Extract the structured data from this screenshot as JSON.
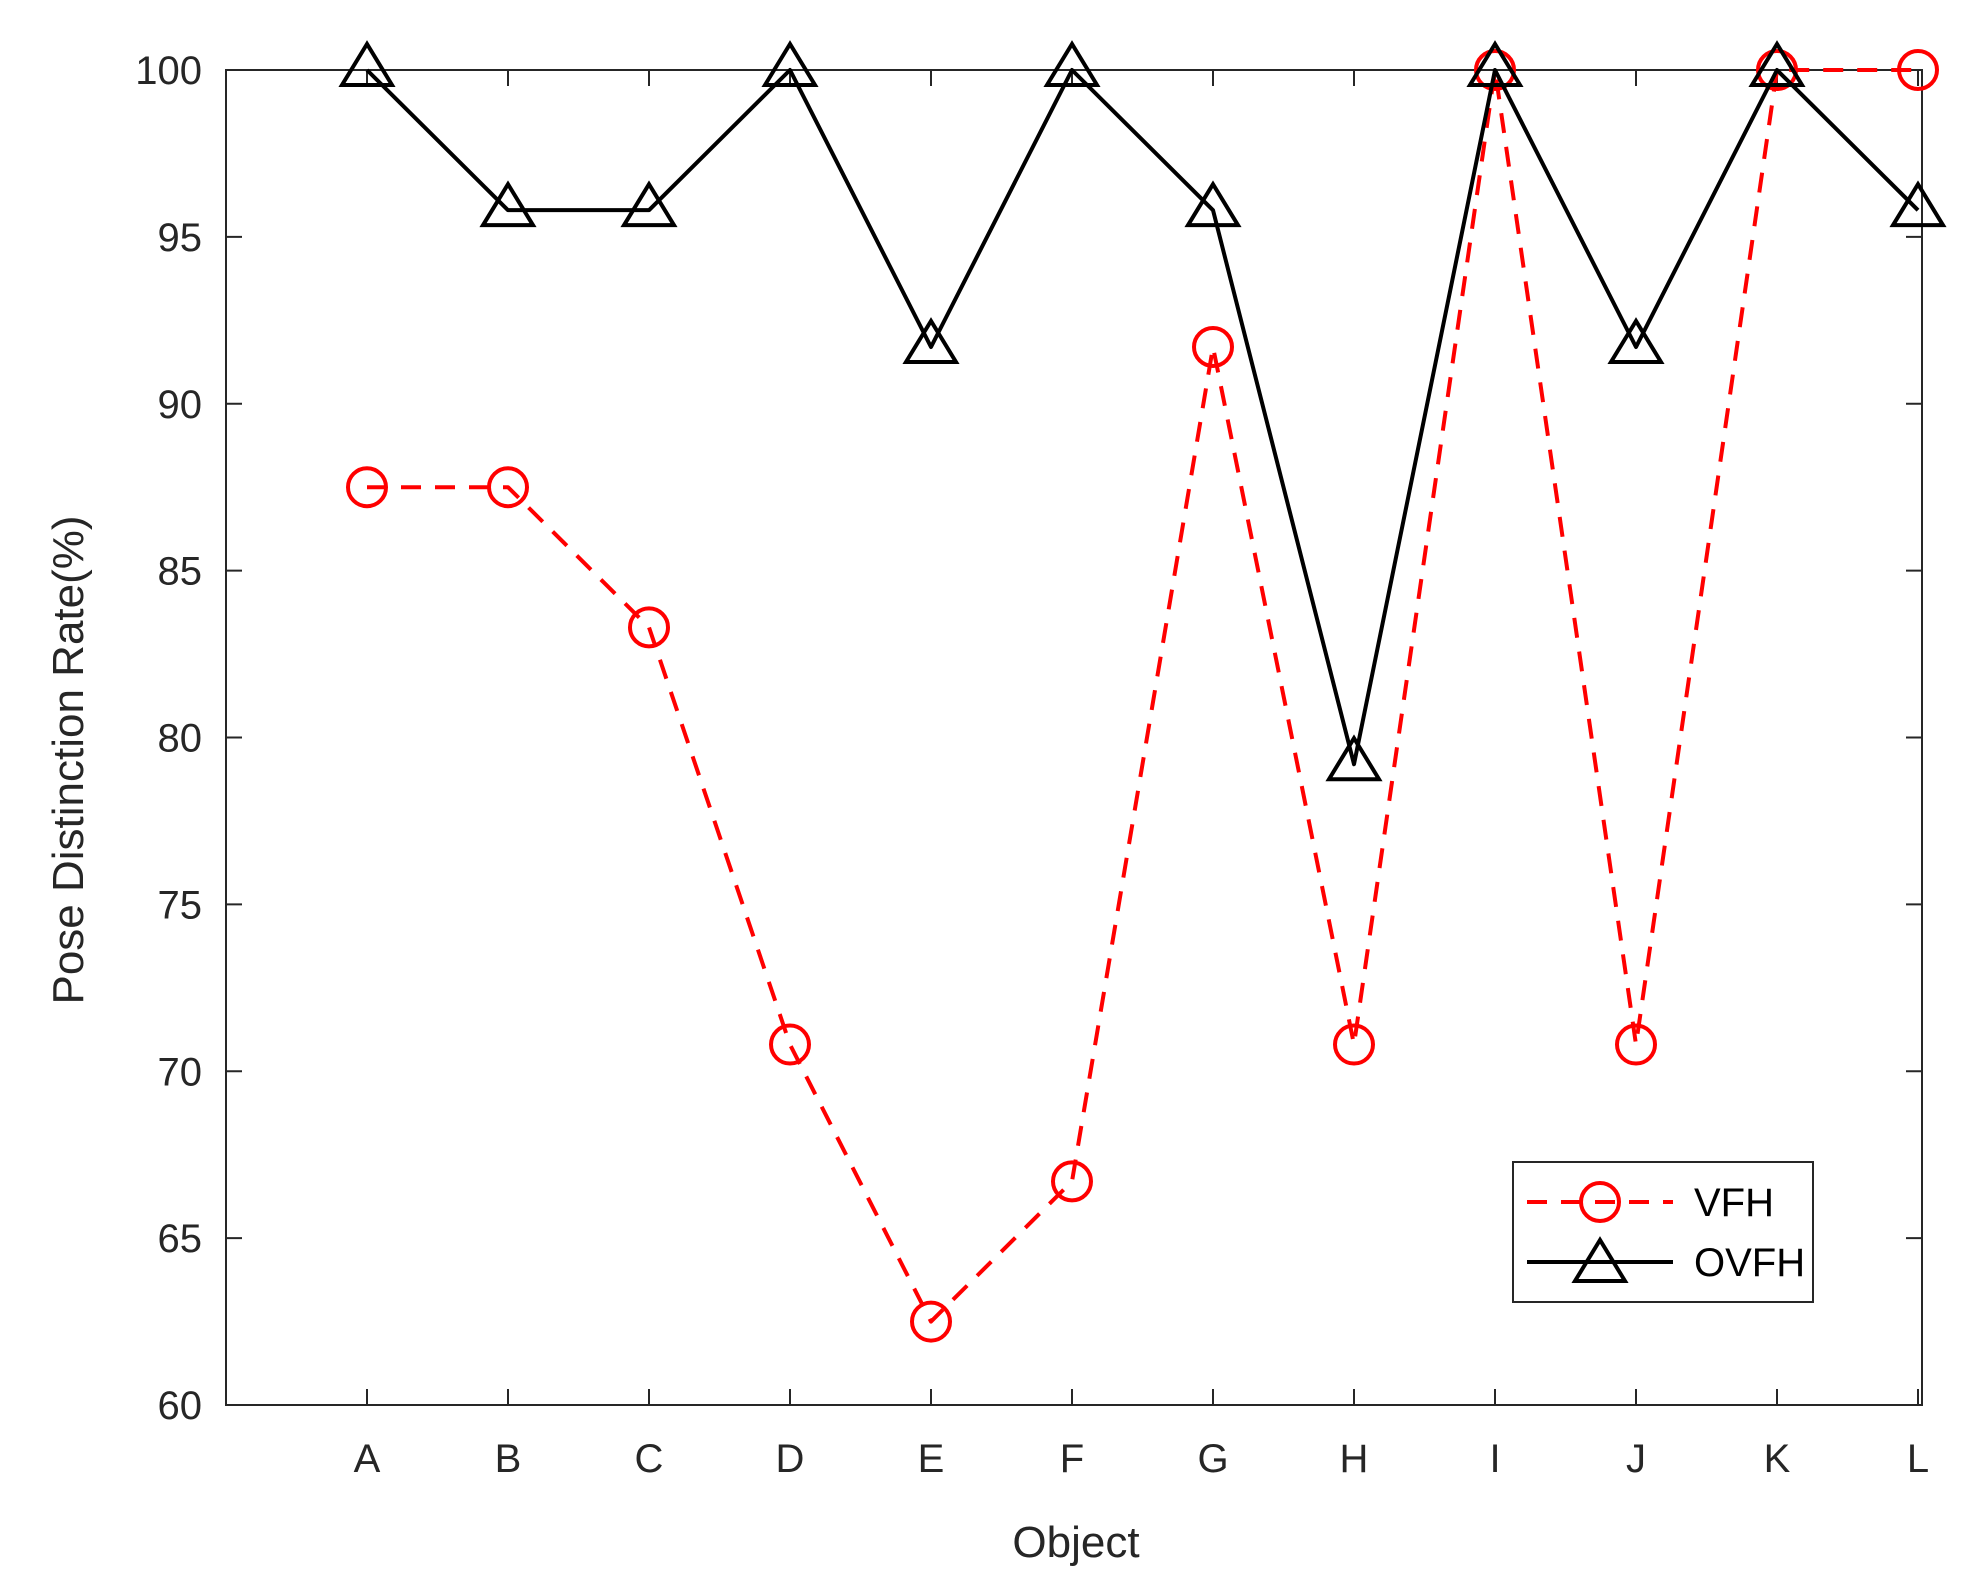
{
  "chart_data": {
    "type": "line",
    "title": "",
    "xlabel": "Object",
    "ylabel": "Pose Distinction Rate(%)",
    "categories": [
      "A",
      "B",
      "C",
      "D",
      "E",
      "F",
      "G",
      "H",
      "I",
      "J",
      "K",
      "L"
    ],
    "ylim": [
      60,
      100
    ],
    "yticks": [
      60,
      65,
      70,
      75,
      80,
      85,
      90,
      95,
      100
    ],
    "grid": false,
    "legend_position": "bottom-right",
    "series": [
      {
        "name": "VFH",
        "color": "#ff0000",
        "line_style": "dashed",
        "marker": "circle",
        "values": [
          87.5,
          87.5,
          83.3,
          70.8,
          62.5,
          66.7,
          91.7,
          70.8,
          100,
          70.8,
          100,
          100
        ]
      },
      {
        "name": "OVFH",
        "color": "#000000",
        "line_style": "solid",
        "marker": "triangle",
        "values": [
          100,
          95.8,
          95.8,
          100,
          91.7,
          100,
          95.8,
          79.2,
          100,
          91.7,
          100,
          95.8
        ]
      }
    ]
  }
}
